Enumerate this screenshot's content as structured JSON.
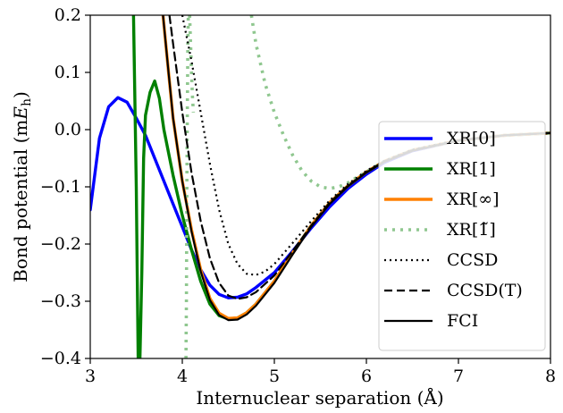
{
  "chart_data": {
    "type": "line",
    "xlabel": "Internuclear separation (Å)",
    "ylabel_parts": [
      "Bond potential (m",
      "E",
      "h",
      ")"
    ],
    "xlim": [
      3,
      8
    ],
    "ylim": [
      -0.4,
      0.2
    ],
    "xticks": [
      3,
      4,
      5,
      6,
      7,
      8
    ],
    "xtick_labels": [
      "3",
      "4",
      "5",
      "6",
      "7",
      "8"
    ],
    "yticks": [
      -0.4,
      -0.3,
      -0.2,
      -0.1,
      0.0,
      0.1,
      0.2
    ],
    "ytick_labels": [
      "−0.4",
      "−0.3",
      "−0.2",
      "−0.1",
      "0.0",
      "0.1",
      "0.2"
    ],
    "legend_position": "right",
    "series": [
      {
        "name": "XR[0]",
        "color": "#0000ff",
        "style": "solid",
        "width": 3.4,
        "x": [
          3.0,
          3.1,
          3.2,
          3.3,
          3.4,
          3.5,
          3.6,
          3.7,
          3.8,
          3.9,
          4.0,
          4.1,
          4.2,
          4.3,
          4.4,
          4.5,
          4.6,
          4.7,
          4.8,
          5.0,
          5.2,
          5.4,
          5.6,
          5.8,
          6.0,
          6.2,
          6.5,
          7.0,
          7.5,
          8.0
        ],
        "y": [
          -0.14,
          -0.015,
          0.04,
          0.056,
          0.048,
          0.02,
          -0.01,
          -0.05,
          -0.09,
          -0.13,
          -0.17,
          -0.21,
          -0.245,
          -0.272,
          -0.288,
          -0.294,
          -0.293,
          -0.287,
          -0.276,
          -0.25,
          -0.212,
          -0.172,
          -0.135,
          -0.103,
          -0.078,
          -0.057,
          -0.037,
          -0.019,
          -0.01,
          -0.006
        ]
      },
      {
        "name": "XR[1]",
        "color": "#008000",
        "style": "solid",
        "width": 3.4,
        "x": [
          3.47,
          3.5,
          3.52,
          3.54,
          3.56,
          3.58,
          3.6,
          3.65,
          3.7,
          3.75,
          3.8,
          3.9,
          4.0,
          4.1,
          4.2,
          4.3,
          4.4,
          4.5,
          4.6,
          4.7,
          4.8,
          5.0,
          5.2,
          5.4,
          5.6,
          5.8,
          6.0,
          6.2,
          6.5,
          7.0,
          7.5,
          8.0
        ],
        "y": [
          0.2,
          -0.1,
          -0.4,
          -0.4,
          -0.25,
          -0.05,
          0.025,
          0.065,
          0.085,
          0.055,
          0.0,
          -0.08,
          -0.15,
          -0.21,
          -0.265,
          -0.305,
          -0.325,
          -0.331,
          -0.329,
          -0.32,
          -0.305,
          -0.265,
          -0.215,
          -0.168,
          -0.128,
          -0.098,
          -0.074,
          -0.055,
          -0.036,
          -0.019,
          -0.01,
          -0.006
        ]
      },
      {
        "name": "XR[∞]",
        "color": "#ff8000",
        "style": "solid",
        "width": 3.4,
        "x": [
          3.79,
          3.85,
          3.9,
          4.0,
          4.1,
          4.2,
          4.3,
          4.4,
          4.5,
          4.6,
          4.7,
          4.8,
          5.0,
          5.2,
          5.4,
          5.6,
          5.8,
          6.0,
          6.2,
          6.5,
          7.0,
          7.5,
          8.0
        ],
        "y": [
          0.2,
          0.1,
          0.02,
          -0.09,
          -0.175,
          -0.245,
          -0.295,
          -0.321,
          -0.33,
          -0.329,
          -0.32,
          -0.305,
          -0.265,
          -0.215,
          -0.168,
          -0.128,
          -0.098,
          -0.074,
          -0.055,
          -0.036,
          -0.019,
          -0.01,
          -0.006
        ]
      },
      {
        "name": "XR[1̃]",
        "color": "#8fc78f",
        "style": "dotted",
        "width": 3.6,
        "x": [
          4.04,
          4.045,
          4.05,
          4.055,
          4.06,
          4.065
        ],
        "y": [
          -0.4,
          -0.3,
          -0.1,
          0.05,
          0.15,
          0.2
        ],
        "x2": [
          4.08,
          4.09,
          4.1,
          4.11,
          4.12
        ],
        "y2": [
          0.2,
          0.15,
          0.1,
          0.06,
          0.03
        ],
        "x3": [
          4.75,
          4.8,
          4.9,
          5.0,
          5.1,
          5.2,
          5.3,
          5.4,
          5.5,
          5.6,
          5.7,
          5.8,
          5.9,
          6.0,
          6.2,
          6.5,
          7.0,
          7.5,
          8.0
        ],
        "y3": [
          0.2,
          0.15,
          0.08,
          0.03,
          -0.01,
          -0.045,
          -0.072,
          -0.09,
          -0.1,
          -0.103,
          -0.1,
          -0.093,
          -0.083,
          -0.074,
          -0.055,
          -0.036,
          -0.019,
          -0.01,
          -0.006
        ]
      },
      {
        "name": "CCSD",
        "color": "#000000",
        "style": "dotted",
        "width": 2.2,
        "x": [
          4.0,
          4.1,
          4.2,
          4.3,
          4.4,
          4.5,
          4.6,
          4.7,
          4.8,
          4.9,
          5.0,
          5.2,
          5.4,
          5.6,
          5.8,
          6.0,
          6.2,
          6.5,
          7.0,
          7.5,
          8.0
        ],
        "y": [
          0.2,
          0.12,
          0.03,
          -0.06,
          -0.14,
          -0.2,
          -0.235,
          -0.252,
          -0.254,
          -0.248,
          -0.235,
          -0.198,
          -0.16,
          -0.124,
          -0.095,
          -0.072,
          -0.054,
          -0.035,
          -0.018,
          -0.01,
          -0.006
        ]
      },
      {
        "name": "CCSD(T)",
        "color": "#000000",
        "style": "dashed",
        "width": 2.2,
        "x": [
          3.86,
          3.9,
          4.0,
          4.1,
          4.2,
          4.3,
          4.4,
          4.5,
          4.6,
          4.7,
          4.8,
          5.0,
          5.2,
          5.4,
          5.6,
          5.8,
          6.0,
          6.2,
          6.5,
          7.0,
          7.5,
          8.0
        ],
        "y": [
          0.2,
          0.15,
          0.03,
          -0.075,
          -0.16,
          -0.225,
          -0.268,
          -0.29,
          -0.296,
          -0.293,
          -0.284,
          -0.255,
          -0.212,
          -0.168,
          -0.128,
          -0.098,
          -0.074,
          -0.055,
          -0.036,
          -0.019,
          -0.01,
          -0.006
        ]
      },
      {
        "name": "FCI",
        "color": "#000000",
        "style": "solid",
        "width": 2.2,
        "x": [
          3.79,
          3.85,
          3.9,
          4.0,
          4.1,
          4.2,
          4.3,
          4.4,
          4.5,
          4.6,
          4.7,
          4.8,
          5.0,
          5.2,
          5.4,
          5.6,
          5.8,
          6.0,
          6.2,
          6.5,
          7.0,
          7.5,
          8.0
        ],
        "y": [
          0.2,
          0.1,
          0.02,
          -0.09,
          -0.178,
          -0.248,
          -0.298,
          -0.324,
          -0.333,
          -0.332,
          -0.323,
          -0.308,
          -0.268,
          -0.218,
          -0.17,
          -0.13,
          -0.099,
          -0.075,
          -0.056,
          -0.037,
          -0.019,
          -0.01,
          -0.006
        ]
      }
    ]
  }
}
